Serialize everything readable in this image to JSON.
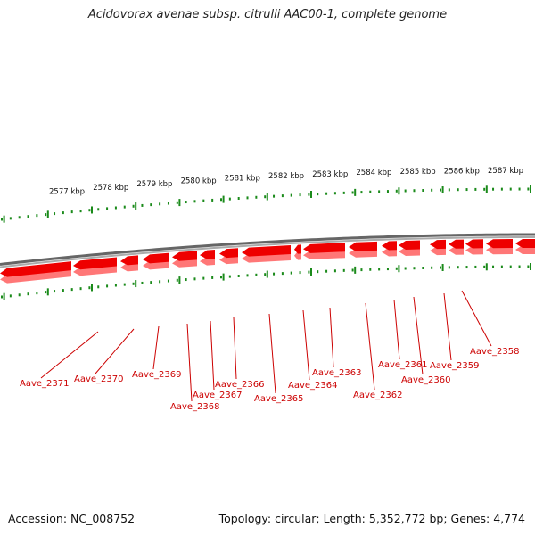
{
  "title": "Acidovorax avenae subsp. citrulli AAC00-1, complete genome",
  "footer": {
    "accession": "Accession: NC_008752",
    "summary": "Topology: circular; Length: 5,352,772 bp; Genes: 4,774"
  },
  "colors": {
    "gene_fill": "#ee0000",
    "gene_shadow": "#ff7777",
    "label": "#cc0000",
    "tick": "#1a8a1a",
    "backbone": "#888888"
  },
  "scale_labels": [
    "2587 kbp",
    "2586 kbp",
    "2585 kbp",
    "2584 kbp",
    "2583 kbp",
    "2582 kbp",
    "2581 kbp",
    "2580 kbp",
    "2579 kbp",
    "2578 kbp",
    "2577 kbp"
  ],
  "genes": [
    {
      "name": "Aave_2371",
      "strand": "-"
    },
    {
      "name": "Aave_2370",
      "strand": "-"
    },
    {
      "name": "Aave_2369",
      "strand": "-"
    },
    {
      "name": "Aave_2368",
      "strand": "-"
    },
    {
      "name": "Aave_2367",
      "strand": "-"
    },
    {
      "name": "Aave_2366",
      "strand": "-"
    },
    {
      "name": "Aave_2365",
      "strand": "-"
    },
    {
      "name": "Aave_2364",
      "strand": "-"
    },
    {
      "name": "Aave_2363",
      "strand": "-"
    },
    {
      "name": "Aave_2362",
      "strand": "-"
    },
    {
      "name": "Aave_2361",
      "strand": "-"
    },
    {
      "name": "Aave_2360",
      "strand": "-"
    },
    {
      "name": "Aave_2359",
      "strand": "-"
    },
    {
      "name": "Aave_2358",
      "strand": "-"
    }
  ]
}
